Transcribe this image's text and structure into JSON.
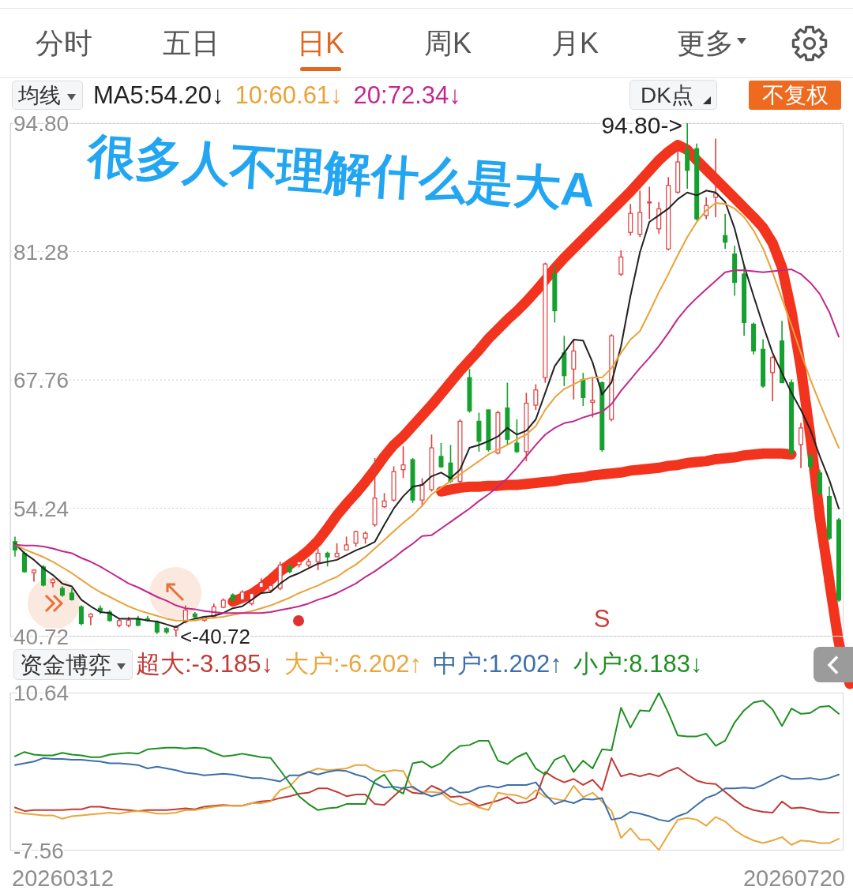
{
  "chart_data": [
    {
      "type": "candlestick",
      "title": "很多人不理解什么是大A",
      "categories": [
        null,
        null,
        null,
        null,
        null,
        null,
        null,
        null,
        null,
        null,
        null,
        null,
        null,
        null,
        null,
        null,
        null,
        null,
        null,
        null,
        null,
        null,
        null,
        null,
        null,
        null,
        null,
        null,
        null,
        null,
        null,
        null,
        null,
        null,
        null,
        null,
        null,
        null,
        null,
        null,
        null,
        null,
        null,
        null,
        null,
        null,
        null,
        null,
        null,
        null,
        null,
        null,
        null,
        null,
        null,
        null,
        null,
        null,
        null,
        null,
        null,
        null,
        null,
        null,
        null,
        null,
        null,
        null,
        null,
        null,
        null,
        null,
        null,
        null,
        null,
        null,
        null,
        null,
        null,
        null,
        null,
        null,
        null,
        null,
        null,
        null,
        null,
        null
      ],
      "series": [
        {
          "ohlc": [
            [
              50.72,
              51.25,
              49.14,
              49.84
            ],
            [
              49.49,
              49.66,
              47.44,
              47.55
            ],
            [
              47.44,
              47.8,
              46.5,
              47.72
            ],
            [
              48.06,
              48.25,
              46.0,
              46.14
            ],
            [
              46.4,
              46.85,
              45.9,
              46.7
            ],
            [
              45.79,
              46.0,
              44.9,
              45.08
            ],
            [
              45.3,
              45.8,
              44.5,
              44.6
            ],
            [
              43.85,
              44.0,
              41.9,
              42.09
            ],
            [
              42.8,
              43.2,
              41.9,
              43.08
            ],
            [
              43.7,
              44.0,
              43.1,
              43.4
            ],
            [
              43.3,
              43.5,
              42.3,
              42.4
            ],
            [
              41.9,
              42.6,
              41.7,
              42.4
            ],
            [
              41.9,
              42.8,
              41.7,
              42.45
            ],
            [
              42.6,
              42.9,
              41.8,
              41.9
            ],
            [
              42.6,
              42.9,
              42.3,
              42.45
            ],
            [
              42.26,
              42.4,
              41.0,
              41.2
            ],
            [
              41.56,
              41.7,
              41.0,
              41.2
            ],
            [
              41.4,
              41.9,
              40.72,
              41.7
            ],
            [
              42.27,
              44.0,
              42.1,
              43.5
            ],
            [
              43.1,
              43.3,
              42.6,
              42.8
            ],
            [
              42.45,
              42.9,
              42.3,
              42.8
            ],
            [
              42.8,
              44.2,
              42.6,
              43.85
            ],
            [
              43.8,
              44.73,
              43.7,
              44.55
            ],
            [
              45.1,
              45.26,
              44.38,
              44.55
            ],
            [
              44.6,
              45.6,
              44.4,
              45.4
            ],
            [
              44.2,
              45.6,
              44.0,
              45.26
            ],
            [
              45.9,
              46.85,
              45.8,
              46.4
            ],
            [
              45.6,
              46.4,
              45.4,
              46.1
            ],
            [
              45.8,
              48.6,
              45.6,
              48.25
            ],
            [
              48.06,
              48.4,
              47.4,
              47.55
            ],
            [
              48.3,
              48.8,
              48.0,
              48.6
            ],
            [
              48.25,
              48.9,
              48.0,
              48.6
            ],
            [
              48.6,
              50.0,
              47.7,
              49.5
            ],
            [
              49.5,
              49.66,
              48.1,
              49.1
            ],
            [
              49.13,
              50.55,
              49.1,
              49.49
            ],
            [
              49.84,
              51.25,
              49.78,
              50.37
            ],
            [
              50.55,
              51.88,
              50.2,
              51.77
            ],
            [
              51.1,
              51.8,
              50.5,
              51.6
            ],
            [
              52.49,
              59.53,
              52.3,
              55.3
            ],
            [
              54.4,
              55.83,
              54.24,
              55.0
            ],
            [
              55.1,
              58.65,
              54.95,
              58.1
            ],
            [
              58.3,
              60.76,
              57.42,
              58.8
            ],
            [
              59.35,
              59.53,
              54.8,
              55.1
            ],
            [
              55.1,
              57.4,
              54.4,
              56.7
            ],
            [
              56.2,
              62.0,
              56.0,
              60.6
            ],
            [
              59.7,
              61.1,
              58.5,
              58.6
            ],
            [
              59.0,
              60.9,
              56.9,
              57.07
            ],
            [
              57.07,
              63.6,
              56.9,
              63.4
            ],
            [
              68.0,
              68.9,
              64.3,
              64.5
            ],
            [
              63.4,
              64.3,
              60.2,
              61.3
            ],
            [
              64.6,
              64.6,
              60.2,
              60.4
            ],
            [
              60.06,
              64.5,
              59.9,
              64.3
            ],
            [
              64.8,
              67.46,
              60.9,
              61.5
            ],
            [
              61.1,
              63.6,
              60.06,
              60.2
            ],
            [
              60.2,
              66.4,
              59.2,
              65.3
            ],
            [
              65.1,
              67.3,
              64.6,
              66.7
            ],
            [
              68.0,
              80.1,
              67.46,
              79.97
            ],
            [
              78.9,
              79.8,
              73.8,
              75.04
            ],
            [
              70.6,
              72.4,
              67.1,
              68.2
            ],
            [
              68.9,
              72.0,
              65.7,
              70.8
            ],
            [
              67.8,
              68.5,
              65.0,
              65.9
            ],
            [
              65.4,
              68.0,
              63.8,
              65.6
            ],
            [
              67.46,
              67.6,
              60.2,
              60.4
            ],
            [
              63.6,
              72.57,
              63.4,
              72.4
            ],
            [
              78.9,
              81.4,
              78.7,
              80.7
            ],
            [
              83.3,
              86.3,
              82.96,
              85.3
            ],
            [
              83.1,
              87.7,
              82.8,
              85.4
            ],
            [
              86.4,
              88.1,
              84.7,
              86.5
            ],
            [
              83.67,
              86.49,
              83.14,
              85.78
            ],
            [
              81.55,
              89.13,
              81.38,
              88.25
            ],
            [
              87.54,
              91.95,
              87.37,
              90.72
            ],
            [
              91.95,
              94.8,
              87.9,
              89.83
            ],
            [
              92.12,
              92.65,
              84.54,
              84.72
            ],
            [
              85.07,
              87.0,
              84.7,
              86.13
            ],
            [
              87.0,
              93.18,
              84.9,
              87.37
            ],
            [
              82.96,
              85.25,
              81.55,
              82.26
            ],
            [
              81.02,
              81.9,
              76.62,
              78.03
            ],
            [
              78.91,
              79.79,
              72.39,
              73.8
            ],
            [
              73.63,
              73.8,
              70.45,
              70.81
            ],
            [
              70.98,
              72.04,
              66.93,
              67.11
            ],
            [
              68.52,
              70.28,
              65.52,
              70.1
            ],
            [
              71.86,
              73.98,
              67.46,
              67.46
            ],
            [
              67.46,
              67.81,
              59.88,
              60.06
            ],
            [
              60.94,
              63.23,
              58.47,
              62.7
            ],
            [
              59.71,
              60.06,
              58.3,
              58.65
            ],
            [
              57.95,
              58.3,
              55.48,
              55.83
            ],
            [
              55.48,
              56.54,
              50.9,
              51.07
            ],
            [
              53.01,
              53.19,
              44.38,
              44.56
            ]
          ],
          "colors": [
            "#15a02f",
            "#15a02f",
            "#e23c3c",
            "#15a02f",
            "#e23c3c",
            "#15a02f",
            "#15a02f",
            "#15a02f",
            "#e23c3c",
            "#15a02f",
            "#15a02f",
            "#e23c3c",
            "#e23c3c",
            "#15a02f",
            "#15a02f",
            "#15a02f",
            "#15a02f",
            "#e23c3c",
            "#e23c3c",
            "#15a02f",
            "#e23c3c",
            "#e23c3c",
            "#e23c3c",
            "#15a02f",
            "#e23c3c",
            "#e23c3c",
            "#e23c3c",
            "#e23c3c",
            "#e23c3c",
            "#15a02f",
            "#e23c3c",
            "#e23c3c",
            "#e23c3c",
            "#15a02f",
            "#e23c3c",
            "#e23c3c",
            "#e23c3c",
            "#e23c3c",
            "#e23c3c",
            "#e23c3c",
            "#e23c3c",
            "#e23c3c",
            "#15a02f",
            "#e23c3c",
            "#e23c3c",
            "#15a02f",
            "#15a02f",
            "#e23c3c",
            "#15a02f",
            "#15a02f",
            "#15a02f",
            "#e23c3c",
            "#15a02f",
            "#15a02f",
            "#e23c3c",
            "#e23c3c",
            "#e23c3c",
            "#15a02f",
            "#15a02f",
            "#e23c3c",
            "#15a02f",
            "#e23c3c",
            "#15a02f",
            "#e23c3c",
            "#e23c3c",
            "#e23c3c",
            "#e23c3c",
            "#e23c3c",
            "#e23c3c",
            "#e23c3c",
            "#e23c3c",
            "#15a02f",
            "#15a02f",
            "#e23c3c",
            "#e23c3c",
            "#15a02f",
            "#15a02f",
            "#15a02f",
            "#15a02f",
            "#15a02f",
            "#e23c3c",
            "#15a02f",
            "#15a02f",
            "#e23c3c",
            "#15a02f",
            "#15a02f",
            "#15a02f",
            "#15a02f"
          ]
        },
        {
          "type": "line",
          "name": "MA5:54.20↓",
          "color": "#222222",
          "values": [
            50.5,
            49.5,
            48.8,
            47.9,
            47.2,
            46.3,
            46.0,
            44.6,
            43.9,
            43.3,
            43.2,
            42.6,
            42.6,
            42.6,
            42.4,
            42.3,
            42.0,
            41.7,
            42.3,
            42.6,
            42.8,
            42.9,
            43.2,
            43.7,
            43.9,
            44.6,
            45.3,
            45.4,
            46.3,
            47.0,
            47.4,
            47.9,
            48.4,
            48.6,
            48.8,
            49.3,
            49.8,
            50.2,
            50.7,
            52.5,
            54.2,
            55.5,
            56.5,
            56.7,
            57.6,
            58.0,
            57.4,
            58.3,
            60.6,
            60.9,
            61.3,
            61.8,
            62.7,
            62.0,
            62.4,
            63.6,
            66.4,
            69.2,
            70.6,
            72.0,
            71.9,
            69.6,
            66.2,
            67.5,
            71.3,
            76.6,
            81.2,
            84.4,
            85.1,
            85.8,
            86.8,
            87.5,
            87.2,
            87.7,
            87.5,
            86.5,
            83.7,
            79.8,
            76.6,
            73.5,
            70.6,
            68.5,
            66.4,
            64.6,
            62.5,
            59.7,
            57.2,
            54.2
          ]
        },
        {
          "type": "line",
          "name": "10:60.61↓",
          "color": "#eaa23a",
          "values": [
            50.4,
            49.9,
            49.5,
            49.1,
            48.6,
            48.0,
            47.4,
            46.7,
            46.0,
            45.4,
            44.9,
            44.4,
            43.9,
            43.5,
            43.2,
            42.9,
            42.6,
            42.4,
            42.4,
            42.4,
            42.6,
            42.7,
            42.8,
            43.0,
            43.2,
            43.4,
            43.7,
            44.0,
            44.4,
            44.8,
            45.3,
            45.7,
            46.1,
            46.6,
            47.0,
            47.7,
            48.3,
            49.1,
            50.0,
            50.9,
            51.8,
            52.7,
            53.5,
            54.5,
            55.7,
            56.4,
            57.1,
            57.8,
            58.5,
            59.2,
            59.9,
            60.4,
            60.9,
            61.5,
            62.0,
            62.9,
            64.6,
            65.9,
            66.8,
            67.3,
            67.8,
            68.0,
            68.0,
            69.0,
            70.6,
            72.0,
            72.9,
            74.9,
            77.0,
            78.9,
            80.9,
            82.8,
            84.4,
            85.6,
            86.4,
            86.3,
            85.8,
            84.9,
            83.5,
            81.6,
            79.1,
            76.3,
            73.5,
            70.6,
            67.8,
            65.3,
            62.9,
            60.6
          ]
        },
        {
          "type": "line",
          "name": "20:72.34↓",
          "color": "#c2278e",
          "values": [
            50.4,
            50.3,
            50.3,
            50.2,
            50.0,
            49.7,
            49.5,
            49.0,
            48.6,
            48.1,
            47.5,
            46.9,
            46.3,
            45.9,
            45.4,
            44.9,
            44.5,
            44.0,
            43.7,
            43.6,
            43.4,
            43.3,
            43.2,
            43.2,
            43.2,
            43.2,
            43.2,
            43.3,
            43.5,
            43.7,
            43.9,
            44.2,
            44.6,
            44.9,
            45.3,
            45.8,
            46.3,
            47.0,
            47.6,
            48.3,
            49.0,
            49.8,
            50.5,
            51.3,
            51.4,
            52.1,
            52.8,
            53.5,
            54.2,
            55.0,
            55.7,
            56.5,
            57.4,
            58.5,
            59.7,
            60.9,
            62.0,
            62.7,
            63.2,
            63.4,
            63.8,
            64.1,
            64.4,
            65.2,
            66.6,
            67.8,
            69.0,
            70.1,
            71.3,
            72.7,
            74.2,
            75.4,
            76.4,
            77.3,
            78.2,
            79.1,
            79.3,
            79.3,
            79.2,
            79.1,
            79.2,
            79.3,
            79.4,
            78.9,
            78.0,
            76.8,
            74.9,
            72.3
          ]
        },
        {
          "type": "line",
          "color": "#f2331d",
          "values": [
            null,
            null,
            null,
            null,
            null,
            null,
            null,
            null,
            null,
            null,
            null,
            null,
            null,
            null,
            null,
            null,
            null,
            null,
            null,
            null,
            null,
            null,
            null,
            44.4,
            44.8,
            45.2,
            45.9,
            46.7,
            47.6,
            48.3,
            49.0,
            49.8,
            50.8,
            52.1,
            53.5,
            54.7,
            55.8,
            57.0,
            58.3,
            59.7,
            60.9,
            61.8,
            62.9,
            64.0,
            65.1,
            66.3,
            67.5,
            68.7,
            69.8,
            70.9,
            72.1,
            73.1,
            74.1,
            75.0,
            76.0,
            77.1,
            78.3,
            79.5,
            80.6,
            81.6,
            82.6,
            83.6,
            84.6,
            85.6,
            86.6,
            87.6,
            88.7,
            89.8,
            90.9,
            91.8,
            92.5,
            92.0,
            90.9,
            89.9,
            88.9,
            87.9,
            86.9,
            85.9,
            84.9,
            83.8,
            82.2,
            79.6,
            75.0,
            69.0,
            61.8,
            53.3,
            46.6,
            null
          ]
        },
        {
          "type": "line",
          "color": "#f2331d",
          "values": [
            null,
            null,
            null,
            null,
            null,
            null,
            null,
            null,
            null,
            null,
            null,
            null,
            null,
            null,
            null,
            null,
            null,
            null,
            null,
            null,
            null,
            null,
            null,
            null,
            null,
            null,
            null,
            null,
            null,
            null,
            null,
            null,
            null,
            null,
            null,
            null,
            null,
            null,
            null,
            null,
            null,
            null,
            null,
            null,
            null,
            56.0,
            56.2,
            56.4,
            56.5,
            56.5,
            56.6,
            56.6,
            56.7,
            56.7,
            56.8,
            56.9,
            57.0,
            57.1,
            57.3,
            57.4,
            57.5,
            57.7,
            57.8,
            57.9,
            58.0,
            58.2,
            58.3,
            58.4,
            58.5,
            58.7,
            58.8,
            59.0,
            59.1,
            59.2,
            59.4,
            59.5,
            59.6,
            59.8,
            59.9,
            60.0,
            60.0,
            60.0,
            59.9,
            null,
            null,
            null,
            null,
            null
          ]
        }
      ],
      "ylim": [
        40.72,
        94.8
      ],
      "yticks": [
        40.72,
        54.24,
        67.76,
        81.28,
        {
          "value": 94.8,
          "label": "94.80"
        }
      ],
      "grid": "y",
      "legend": "top left",
      "tick_labels": "y",
      "annotations": [
        "分时",
        "五日",
        "日K",
        "周K",
        "月K",
        "更多",
        "均线",
        "DK点",
        "不复权",
        "S",
        "94.80->",
        "<-40.72"
      ]
    },
    {
      "type": "line",
      "categories": [
        null,
        null,
        null,
        null,
        null,
        null,
        null,
        null,
        null,
        null,
        null,
        null,
        null,
        null,
        null,
        null,
        null,
        null,
        null,
        null,
        null,
        null,
        null,
        null,
        null,
        null,
        null,
        null,
        null,
        null,
        null,
        null,
        null,
        null,
        null,
        null,
        null,
        null,
        null,
        null,
        null,
        null,
        null,
        null,
        null,
        null,
        null,
        null,
        null,
        null,
        null,
        null,
        null,
        null,
        null,
        null,
        null,
        null,
        null,
        null,
        null,
        null,
        null,
        null,
        null,
        null,
        null,
        null,
        null,
        null,
        null,
        null,
        null,
        null,
        null,
        null,
        null,
        null,
        null,
        null,
        null,
        null,
        null,
        null,
        null,
        null,
        null,
        null
      ],
      "series": [
        {
          "name": "超大:-3.185↓",
          "color": "#c23a36",
          "values": [
            -2.6,
            -3.0,
            -2.9,
            -2.9,
            -2.9,
            -2.9,
            -2.8,
            -2.8,
            -2.5,
            -2.5,
            -2.7,
            -2.8,
            -2.9,
            -3.0,
            -2.9,
            -2.9,
            -2.9,
            -2.8,
            -2.7,
            -2.8,
            -2.5,
            -2.4,
            -2.3,
            -2.4,
            -2.4,
            -2.1,
            -1.9,
            -1.8,
            -1.5,
            -1.3,
            -1.0,
            -0.9,
            -0.4,
            -0.4,
            -0.8,
            -1.3,
            -1.1,
            -1.1,
            -2.2,
            -2.3,
            -1.3,
            -0.3,
            -0.9,
            -1.0,
            -0.1,
            -0.6,
            -1.4,
            -1.3,
            -1.8,
            -2.4,
            -2.1,
            -1.8,
            -1.4,
            -2.1,
            -2.0,
            -1.5,
            1.5,
            0.8,
            0.3,
            0.7,
            0.0,
            0.6,
            -0.6,
            3.1,
            1.0,
            1.3,
            1.0,
            1.3,
            1.0,
            1.6,
            2.0,
            1.2,
            0.5,
            0.2,
            0.1,
            -0.8,
            -1.7,
            -2.5,
            -2.9,
            -3.1,
            -3.2,
            -1.9,
            -2.7,
            -2.6,
            -2.8,
            -3.1,
            -3.2,
            -3.2
          ]
        },
        {
          "name": "大户:-6.202↑",
          "color": "#e9a63c",
          "values": [
            -3.1,
            -3.3,
            -3.4,
            -3.5,
            -3.5,
            -3.9,
            -3.6,
            -3.5,
            -3.4,
            -3.3,
            -3.2,
            -3.3,
            -3.1,
            -3.0,
            -3.1,
            -3.3,
            -3.3,
            -3.2,
            -2.9,
            -2.9,
            -2.7,
            -2.5,
            -2.4,
            -2.4,
            -2.4,
            -2.1,
            -2.1,
            -1.9,
            -0.6,
            -0.2,
            1.0,
            1.5,
            1.9,
            1.7,
            1.8,
            1.9,
            2.3,
            2.3,
            1.7,
            1.5,
            1.7,
            1.6,
            -0.4,
            -0.8,
            -0.8,
            -0.9,
            -1.8,
            -2.3,
            -2.1,
            -2.6,
            -2.9,
            -0.9,
            -1.1,
            -1.2,
            -1.6,
            -0.6,
            -1.4,
            -1.6,
            -1.8,
            -0.1,
            -1.4,
            -0.9,
            -1.9,
            -3.0,
            -6.1,
            -5.0,
            -6.3,
            -6.3,
            -7.5,
            -5.7,
            -4.0,
            -3.8,
            -4.0,
            -4.7,
            -3.7,
            -4.2,
            -5.2,
            -5.9,
            -6.4,
            -6.7,
            -6.4,
            -6.0,
            -6.9,
            -6.4,
            -6.5,
            -6.7,
            -6.7,
            -6.2
          ]
        },
        {
          "name": "中户:1.202↑",
          "color": "#3c6fa9",
          "values": [
            2.3,
            2.5,
            2.7,
            3.1,
            3.0,
            3.0,
            2.9,
            2.9,
            2.8,
            2.7,
            2.5,
            2.5,
            2.4,
            2.3,
            1.9,
            2.1,
            1.9,
            1.7,
            1.4,
            1.3,
            1.1,
            1.2,
            1.3,
            1.2,
            1.0,
            0.8,
            0.8,
            0.6,
            0.4,
            1.1,
            1.1,
            1.5,
            1.2,
            1.5,
            1.7,
            1.6,
            1.2,
            0.9,
            0.2,
            -0.3,
            -0.2,
            -0.4,
            -0.2,
            -0.9,
            -1.3,
            -1.0,
            -0.3,
            -0.9,
            -0.8,
            -0.3,
            -0.1,
            -0.3,
            0.0,
            0.0,
            0.0,
            0.3,
            -1.1,
            -2.2,
            -1.8,
            -2.1,
            -1.6,
            -1.7,
            -1.5,
            -4.0,
            -3.8,
            -3.1,
            -3.3,
            -3.6,
            -4.0,
            -4.2,
            -3.6,
            -3.2,
            -2.3,
            -1.5,
            -1.1,
            -0.4,
            -0.4,
            -0.3,
            -0.4,
            0.0,
            0.6,
            1.1,
            0.7,
            0.7,
            0.8,
            0.6,
            0.8,
            1.2
          ]
        },
        {
          "name": "小户:8.183↓",
          "color": "#1f8f22",
          "values": [
            3.3,
            3.8,
            3.5,
            3.4,
            3.4,
            3.7,
            3.5,
            3.4,
            3.2,
            3.2,
            3.5,
            3.6,
            3.7,
            3.6,
            4.1,
            4.2,
            4.3,
            4.3,
            4.2,
            4.3,
            4.2,
            3.7,
            3.3,
            3.4,
            3.6,
            3.4,
            3.2,
            3.1,
            1.7,
            0.2,
            -1.3,
            -2.2,
            -2.9,
            -2.7,
            -2.6,
            -2.2,
            -2.2,
            -2.2,
            0.5,
            1.2,
            -0.4,
            -1.0,
            2.5,
            2.7,
            2.0,
            2.5,
            3.7,
            4.5,
            4.6,
            5.1,
            5.1,
            2.8,
            2.4,
            3.2,
            3.7,
            1.9,
            1.2,
            2.9,
            3.4,
            1.5,
            2.8,
            1.9,
            4.1,
            4.0,
            8.9,
            6.6,
            8.6,
            8.5,
            10.6,
            8.3,
            5.7,
            5.6,
            5.6,
            5.9,
            4.5,
            5.1,
            7.2,
            8.6,
            9.5,
            9.7,
            8.7,
            6.8,
            8.8,
            8.2,
            8.3,
            9.0,
            9.1,
            8.2
          ]
        }
      ],
      "ylim": [
        -7.56,
        10.64
      ],
      "yticks": [
        -7.56,
        10.64
      ],
      "legend": "top left",
      "tick_labels": "y",
      "annotations": [
        "资金博弈",
        "20260312",
        "20260720"
      ]
    }
  ]
}
